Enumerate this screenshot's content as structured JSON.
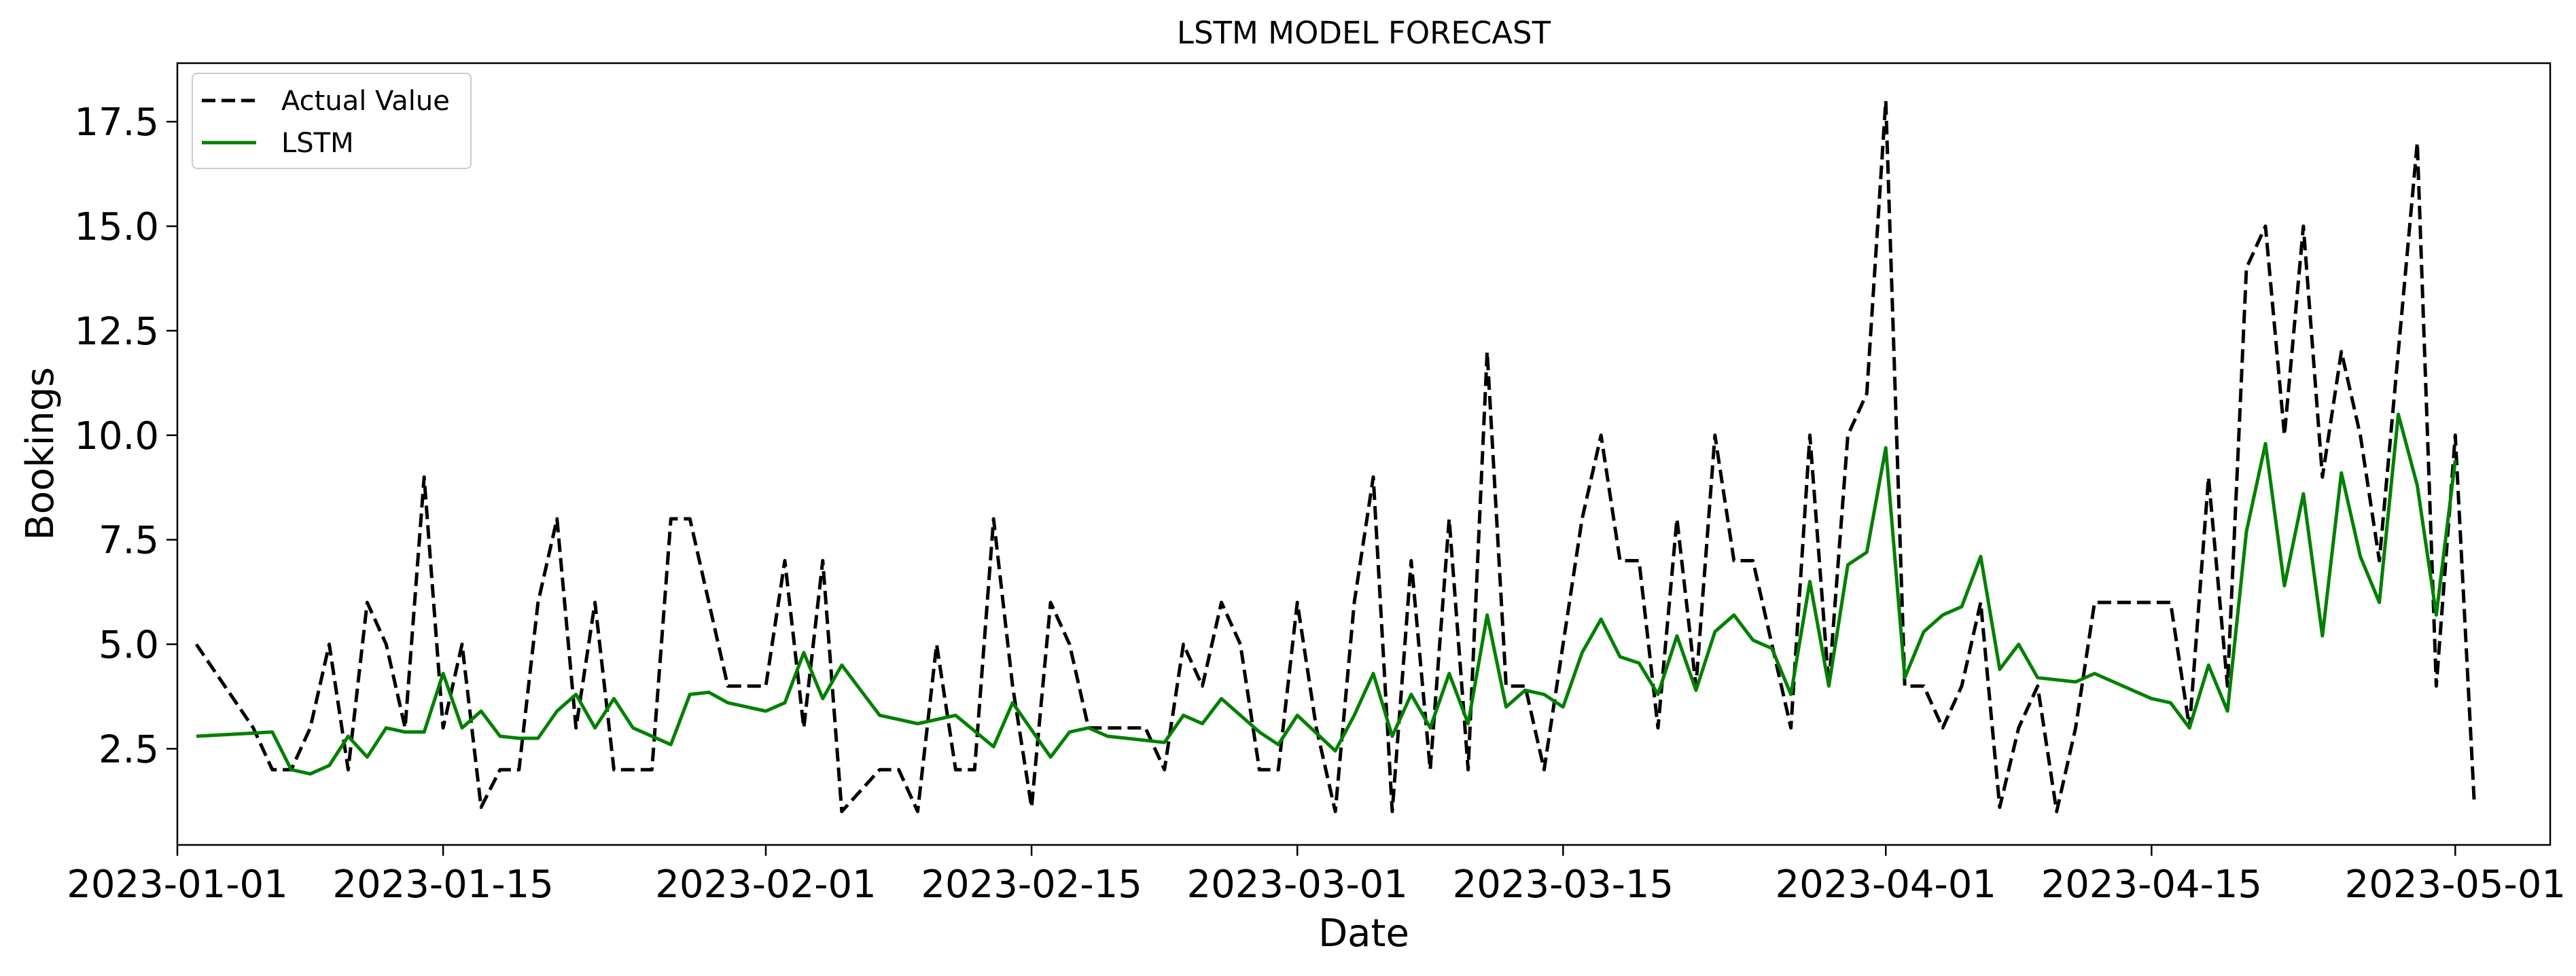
{
  "chart_data": {
    "type": "line",
    "title": "LSTM MODEL FORECAST",
    "xlabel": "Date",
    "ylabel": "Bookings",
    "x_axis_type": "date",
    "xlim": [
      "2023-01-01",
      "2023-05-06"
    ],
    "ylim": [
      0.2,
      18.9
    ],
    "x_ticks": [
      "2023-01-01",
      "2023-01-15",
      "2023-02-01",
      "2023-02-15",
      "2023-03-01",
      "2023-03-15",
      "2023-04-01",
      "2023-04-15",
      "2023-05-01"
    ],
    "y_ticks": [
      2.5,
      5.0,
      7.5,
      10.0,
      12.5,
      15.0,
      17.5
    ],
    "y_tick_labels": [
      "2.5",
      "5.0",
      "7.5",
      "10.0",
      "12.5",
      "15.0",
      "17.5"
    ],
    "grid": false,
    "legend_position": "top-left",
    "series": [
      {
        "name": "Actual Value",
        "color": "#000000",
        "style": "dashed",
        "points": [
          [
            "2023-01-02",
            5
          ],
          [
            "2023-01-05",
            3
          ],
          [
            "2023-01-06",
            2
          ],
          [
            "2023-01-07",
            2
          ],
          [
            "2023-01-08",
            3
          ],
          [
            "2023-01-09",
            5
          ],
          [
            "2023-01-10",
            2
          ],
          [
            "2023-01-11",
            6
          ],
          [
            "2023-01-12",
            5
          ],
          [
            "2023-01-13",
            3
          ],
          [
            "2023-01-14",
            9
          ],
          [
            "2023-01-15",
            3
          ],
          [
            "2023-01-16",
            5
          ],
          [
            "2023-01-17",
            1.1
          ],
          [
            "2023-01-18",
            2
          ],
          [
            "2023-01-19",
            2
          ],
          [
            "2023-01-20",
            6
          ],
          [
            "2023-01-21",
            8
          ],
          [
            "2023-01-22",
            3
          ],
          [
            "2023-01-23",
            6
          ],
          [
            "2023-01-24",
            2
          ],
          [
            "2023-01-25",
            2
          ],
          [
            "2023-01-26",
            2
          ],
          [
            "2023-01-27",
            8
          ],
          [
            "2023-01-28",
            8
          ],
          [
            "2023-01-30",
            4
          ],
          [
            "2023-01-31",
            4
          ],
          [
            "2023-02-01",
            4
          ],
          [
            "2023-02-02",
            7
          ],
          [
            "2023-02-03",
            3
          ],
          [
            "2023-02-04",
            7
          ],
          [
            "2023-02-05",
            1
          ],
          [
            "2023-02-07",
            2
          ],
          [
            "2023-02-08",
            2
          ],
          [
            "2023-02-09",
            1
          ],
          [
            "2023-02-10",
            5
          ],
          [
            "2023-02-11",
            2
          ],
          [
            "2023-02-12",
            2
          ],
          [
            "2023-02-13",
            8
          ],
          [
            "2023-02-14",
            4
          ],
          [
            "2023-02-15",
            1.1
          ],
          [
            "2023-02-16",
            6
          ],
          [
            "2023-02-17",
            5
          ],
          [
            "2023-02-18",
            3
          ],
          [
            "2023-02-19",
            3
          ],
          [
            "2023-02-20",
            3
          ],
          [
            "2023-02-21",
            3
          ],
          [
            "2023-02-22",
            2
          ],
          [
            "2023-02-23",
            5
          ],
          [
            "2023-02-24",
            4
          ],
          [
            "2023-02-25",
            6
          ],
          [
            "2023-02-26",
            5
          ],
          [
            "2023-02-27",
            2
          ],
          [
            "2023-02-28",
            2
          ],
          [
            "2023-03-01",
            6
          ],
          [
            "2023-03-02",
            3
          ],
          [
            "2023-03-03",
            1
          ],
          [
            "2023-03-04",
            6
          ],
          [
            "2023-03-05",
            9
          ],
          [
            "2023-03-06",
            1
          ],
          [
            "2023-03-07",
            7
          ],
          [
            "2023-03-08",
            2
          ],
          [
            "2023-03-09",
            8
          ],
          [
            "2023-03-10",
            2
          ],
          [
            "2023-03-11",
            12
          ],
          [
            "2023-03-12",
            4
          ],
          [
            "2023-03-13",
            4
          ],
          [
            "2023-03-14",
            2
          ],
          [
            "2023-03-15",
            5
          ],
          [
            "2023-03-16",
            8
          ],
          [
            "2023-03-17",
            10
          ],
          [
            "2023-03-18",
            7
          ],
          [
            "2023-03-19",
            7
          ],
          [
            "2023-03-20",
            3
          ],
          [
            "2023-03-21",
            8
          ],
          [
            "2023-03-22",
            4
          ],
          [
            "2023-03-23",
            10
          ],
          [
            "2023-03-24",
            7
          ],
          [
            "2023-03-25",
            7
          ],
          [
            "2023-03-26",
            5
          ],
          [
            "2023-03-27",
            3
          ],
          [
            "2023-03-28",
            10
          ],
          [
            "2023-03-29",
            4
          ],
          [
            "2023-03-30",
            10
          ],
          [
            "2023-03-31",
            11
          ],
          [
            "2023-04-01",
            18
          ],
          [
            "2023-04-02",
            4
          ],
          [
            "2023-04-03",
            4
          ],
          [
            "2023-04-04",
            3
          ],
          [
            "2023-04-05",
            4
          ],
          [
            "2023-04-06",
            6
          ],
          [
            "2023-04-07",
            1.1
          ],
          [
            "2023-04-08",
            3
          ],
          [
            "2023-04-09",
            4
          ],
          [
            "2023-04-10",
            1
          ],
          [
            "2023-04-11",
            3
          ],
          [
            "2023-04-12",
            6
          ],
          [
            "2023-04-14",
            6
          ],
          [
            "2023-04-16",
            6
          ],
          [
            "2023-04-17",
            3
          ],
          [
            "2023-04-18",
            9
          ],
          [
            "2023-04-19",
            4
          ],
          [
            "2023-04-20",
            14
          ],
          [
            "2023-04-21",
            15
          ],
          [
            "2023-04-22",
            10
          ],
          [
            "2023-04-23",
            15
          ],
          [
            "2023-04-24",
            9
          ],
          [
            "2023-04-25",
            12
          ],
          [
            "2023-04-26",
            10
          ],
          [
            "2023-04-27",
            7
          ],
          [
            "2023-04-28",
            12
          ],
          [
            "2023-04-29",
            17
          ],
          [
            "2023-04-30",
            4
          ],
          [
            "2023-05-01",
            10
          ],
          [
            "2023-05-02",
            1.2
          ]
        ]
      },
      {
        "name": "LSTM",
        "color": "#008000",
        "style": "solid",
        "points": [
          [
            "2023-01-02",
            2.8
          ],
          [
            "2023-01-06",
            2.9
          ],
          [
            "2023-01-07",
            2.0
          ],
          [
            "2023-01-08",
            1.9
          ],
          [
            "2023-01-09",
            2.1
          ],
          [
            "2023-01-10",
            2.8
          ],
          [
            "2023-01-11",
            2.3
          ],
          [
            "2023-01-12",
            3.0
          ],
          [
            "2023-01-13",
            2.9
          ],
          [
            "2023-01-14",
            2.9
          ],
          [
            "2023-01-15",
            4.3
          ],
          [
            "2023-01-16",
            3.0
          ],
          [
            "2023-01-17",
            3.4
          ],
          [
            "2023-01-18",
            2.8
          ],
          [
            "2023-01-19",
            2.75
          ],
          [
            "2023-01-20",
            2.75
          ],
          [
            "2023-01-21",
            3.4
          ],
          [
            "2023-01-22",
            3.8
          ],
          [
            "2023-01-23",
            3.0
          ],
          [
            "2023-01-24",
            3.7
          ],
          [
            "2023-01-25",
            3.0
          ],
          [
            "2023-01-27",
            2.6
          ],
          [
            "2023-01-28",
            3.8
          ],
          [
            "2023-01-29",
            3.85
          ],
          [
            "2023-01-30",
            3.6
          ],
          [
            "2023-02-01",
            3.4
          ],
          [
            "2023-02-02",
            3.6
          ],
          [
            "2023-02-03",
            4.8
          ],
          [
            "2023-02-04",
            3.7
          ],
          [
            "2023-02-05",
            4.5
          ],
          [
            "2023-02-07",
            3.3
          ],
          [
            "2023-02-08",
            3.2
          ],
          [
            "2023-02-09",
            3.1
          ],
          [
            "2023-02-11",
            3.3
          ],
          [
            "2023-02-13",
            2.55
          ],
          [
            "2023-02-14",
            3.6
          ],
          [
            "2023-02-16",
            2.3
          ],
          [
            "2023-02-17",
            2.9
          ],
          [
            "2023-02-18",
            3.0
          ],
          [
            "2023-02-19",
            2.8
          ],
          [
            "2023-02-20",
            2.75
          ],
          [
            "2023-02-22",
            2.65
          ],
          [
            "2023-02-23",
            3.3
          ],
          [
            "2023-02-24",
            3.1
          ],
          [
            "2023-02-25",
            3.7
          ],
          [
            "2023-02-27",
            2.9
          ],
          [
            "2023-02-28",
            2.6
          ],
          [
            "2023-03-01",
            3.3
          ],
          [
            "2023-03-03",
            2.45
          ],
          [
            "2023-03-04",
            3.3
          ],
          [
            "2023-03-05",
            4.3
          ],
          [
            "2023-03-06",
            2.8
          ],
          [
            "2023-03-07",
            3.8
          ],
          [
            "2023-03-08",
            3.0
          ],
          [
            "2023-03-09",
            4.3
          ],
          [
            "2023-03-10",
            3.1
          ],
          [
            "2023-03-11",
            5.7
          ],
          [
            "2023-03-12",
            3.5
          ],
          [
            "2023-03-13",
            3.9
          ],
          [
            "2023-03-14",
            3.8
          ],
          [
            "2023-03-15",
            3.5
          ],
          [
            "2023-03-16",
            4.8
          ],
          [
            "2023-03-17",
            5.6
          ],
          [
            "2023-03-18",
            4.7
          ],
          [
            "2023-03-19",
            4.55
          ],
          [
            "2023-03-20",
            3.8
          ],
          [
            "2023-03-21",
            5.2
          ],
          [
            "2023-03-22",
            3.9
          ],
          [
            "2023-03-23",
            5.3
          ],
          [
            "2023-03-24",
            5.7
          ],
          [
            "2023-03-25",
            5.1
          ],
          [
            "2023-03-26",
            4.9
          ],
          [
            "2023-03-27",
            3.8
          ],
          [
            "2023-03-28",
            6.5
          ],
          [
            "2023-03-29",
            4.0
          ],
          [
            "2023-03-30",
            6.9
          ],
          [
            "2023-03-31",
            7.2
          ],
          [
            "2023-04-01",
            9.7
          ],
          [
            "2023-04-02",
            4.2
          ],
          [
            "2023-04-03",
            5.3
          ],
          [
            "2023-04-04",
            5.7
          ],
          [
            "2023-04-05",
            5.9
          ],
          [
            "2023-04-06",
            7.1
          ],
          [
            "2023-04-07",
            4.4
          ],
          [
            "2023-04-08",
            5.0
          ],
          [
            "2023-04-09",
            4.2
          ],
          [
            "2023-04-11",
            4.1
          ],
          [
            "2023-04-12",
            4.3
          ],
          [
            "2023-04-14",
            3.9
          ],
          [
            "2023-04-15",
            3.7
          ],
          [
            "2023-04-16",
            3.6
          ],
          [
            "2023-04-17",
            3.0
          ],
          [
            "2023-04-18",
            4.5
          ],
          [
            "2023-04-19",
            3.4
          ],
          [
            "2023-04-20",
            7.7
          ],
          [
            "2023-04-21",
            9.8
          ],
          [
            "2023-04-22",
            6.4
          ],
          [
            "2023-04-23",
            8.6
          ],
          [
            "2023-04-24",
            5.2
          ],
          [
            "2023-04-25",
            9.1
          ],
          [
            "2023-04-26",
            7.1
          ],
          [
            "2023-04-27",
            6.0
          ],
          [
            "2023-04-28",
            10.5
          ],
          [
            "2023-04-29",
            8.8
          ],
          [
            "2023-04-30",
            5.7
          ],
          [
            "2023-05-01",
            9.4
          ]
        ]
      }
    ]
  }
}
